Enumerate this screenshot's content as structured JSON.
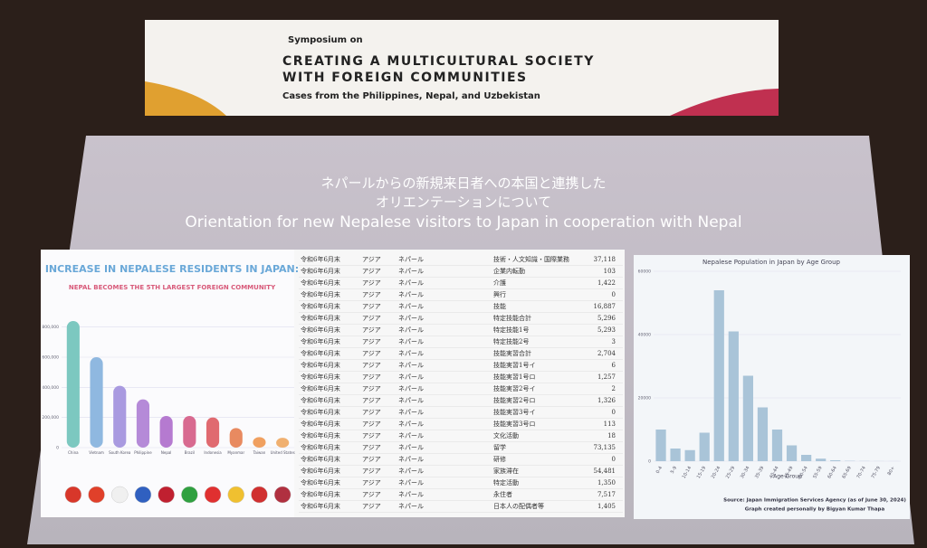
{
  "banner": {
    "line1": "Symposium on",
    "title_line1": "CREATING A MULTICULTURAL SOCIETY",
    "title_line2": "WITH FOREIGN COMMUNITIES",
    "subtitle": "Cases from the Philippines, Nepal, and Uzbekistan"
  },
  "slide": {
    "title_ja_line1": "ネパールからの新規来日者への本国と連携した",
    "title_ja_line2": "オリエンテーションについて",
    "title_en": "Orientation for new Nepalese visitors to Japan in cooperation with Nepal"
  },
  "left_chart": {
    "type": "bar",
    "title": "INCREASE IN NEPALESE RESIDENTS IN JAPAN:",
    "subtitle": "NEPAL BECOMES THE 5TH LARGEST FOREIGN COMMUNITY",
    "categories": [
      "China",
      "Vietnam",
      "South Korea",
      "Philippine",
      "Nepal",
      "Brazil",
      "Indonesia",
      "Myanmar",
      "Taiwan",
      "United States"
    ],
    "values": [
      840000,
      600000,
      410000,
      320000,
      210000,
      210000,
      200000,
      130000,
      70000,
      65000
    ],
    "colors": [
      "#7cc8c0",
      "#8fb8e0",
      "#a99ae0",
      "#b58ad8",
      "#b57ad0",
      "#d86a90",
      "#e06a70",
      "#e88a60",
      "#f0a060",
      "#f0b070"
    ],
    "ylim": [
      0,
      900000
    ],
    "yticks": [
      0,
      {
        "value": 200000,
        "label": "200,000"
      },
      {
        "value": 400000,
        "label": "400,000"
      },
      {
        "value": 600000,
        "label": "600,000"
      },
      {
        "value": 800000,
        "label": "800,000"
      }
    ]
  },
  "table": {
    "rows": [
      [
        "令和6年6月末",
        "アジア",
        "ネパール",
        "技術・人文知識・国際業務",
        "37,118"
      ],
      [
        "令和6年6月末",
        "アジア",
        "ネパール",
        "企業内転勤",
        "103"
      ],
      [
        "令和6年6月末",
        "アジア",
        "ネパール",
        "介護",
        "1,422"
      ],
      [
        "令和6年6月末",
        "アジア",
        "ネパール",
        "興行",
        "0"
      ],
      [
        "令和6年6月末",
        "アジア",
        "ネパール",
        "技能",
        "16,887"
      ],
      [
        "令和6年6月末",
        "アジア",
        "ネパール",
        "特定技能合計",
        "5,296"
      ],
      [
        "令和6年6月末",
        "アジア",
        "ネパール",
        "特定技能1号",
        "5,293"
      ],
      [
        "令和6年6月末",
        "アジア",
        "ネパール",
        "特定技能2号",
        "3"
      ],
      [
        "令和6年6月末",
        "アジア",
        "ネパール",
        "技能実習合計",
        "2,704"
      ],
      [
        "令和6年6月末",
        "アジア",
        "ネパール",
        "技能実習1号イ",
        "6"
      ],
      [
        "令和6年6月末",
        "アジア",
        "ネパール",
        "技能実習1号ロ",
        "1,257"
      ],
      [
        "令和6年6月末",
        "アジア",
        "ネパール",
        "技能実習2号イ",
        "2"
      ],
      [
        "令和6年6月末",
        "アジア",
        "ネパール",
        "技能実習2号ロ",
        "1,326"
      ],
      [
        "令和6年6月末",
        "アジア",
        "ネパール",
        "技能実習3号イ",
        "0"
      ],
      [
        "令和6年6月末",
        "アジア",
        "ネパール",
        "技能実習3号ロ",
        "113"
      ],
      [
        "令和6年6月末",
        "アジア",
        "ネパール",
        "文化活動",
        "18"
      ],
      [
        "令和6年6月末",
        "アジア",
        "ネパール",
        "留学",
        "73,135"
      ],
      [
        "令和6年6月末",
        "アジア",
        "ネパール",
        "研修",
        "0"
      ],
      [
        "令和6年6月末",
        "アジア",
        "ネパール",
        "家族滞在",
        "54,481"
      ],
      [
        "令和6年6月末",
        "アジア",
        "ネパール",
        "特定活動",
        "1,350"
      ],
      [
        "令和6年6月末",
        "アジア",
        "ネパール",
        "永住者",
        "7,517"
      ],
      [
        "令和6年6月末",
        "アジア",
        "ネパール",
        "日本人の配偶者等",
        "1,405"
      ]
    ]
  },
  "right_chart": {
    "type": "bar",
    "title": "Nepalese Population in Japan by Age Group",
    "x_label": "Age Group",
    "color": "#a9c4d8",
    "categories": [
      "0-4",
      "5-9",
      "10-14",
      "15-19",
      "20-24",
      "25-29",
      "30-34",
      "35-39",
      "40-44",
      "45-49",
      "50-54",
      "55-59",
      "60-64",
      "65-69",
      "70-74",
      "75-79",
      "80+"
    ],
    "values": [
      10000,
      4000,
      3500,
      9000,
      54000,
      41000,
      27000,
      17000,
      10000,
      5000,
      2000,
      800,
      300,
      100,
      50,
      20,
      10
    ],
    "ylim": [
      0,
      60000
    ],
    "yticks": [
      0,
      20000,
      40000,
      60000
    ],
    "source": "Source: Japan Immigration Services Agency (as of June 30, 2024)",
    "credit": "Graph created personally by Bigyan Kumar Thapa"
  }
}
